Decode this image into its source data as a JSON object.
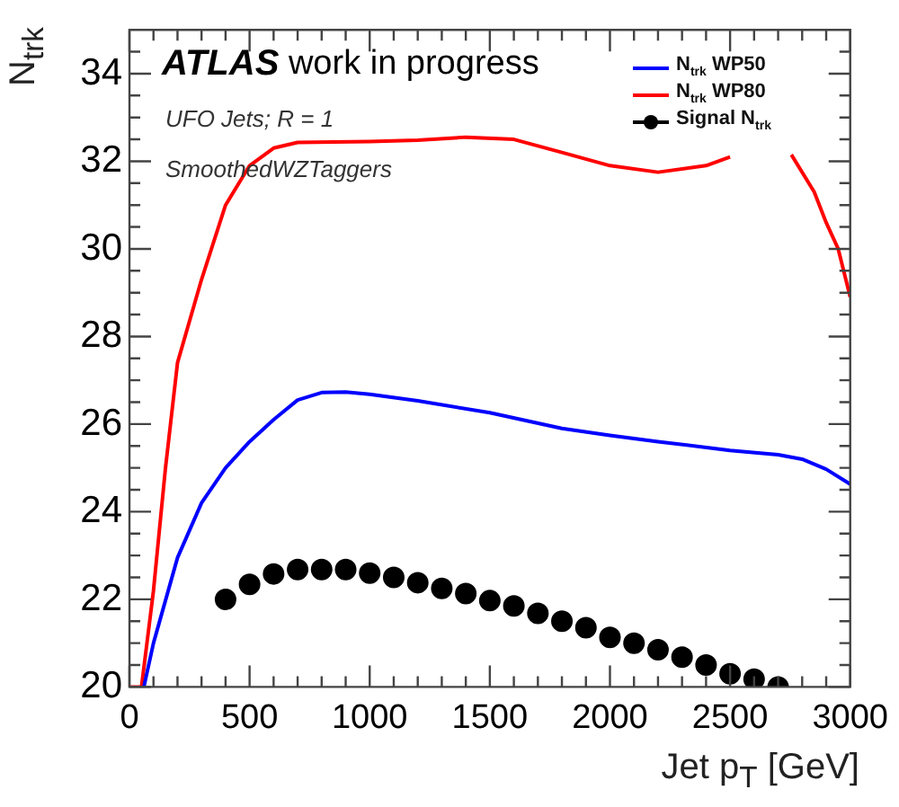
{
  "chart_data": {
    "type": "line",
    "title": "ATLAS work in progress",
    "annotations": [
      "UFO Jets; R = 1",
      "SmoothedWZTaggers"
    ],
    "xlabel": "Jet p$_{T}$ [GeV]",
    "ylabel": "N$_{trk}$",
    "xlim": [
      0,
      3000
    ],
    "ylim": [
      20,
      35
    ],
    "xticks": [
      0,
      {
        "value": 100,
        "label": null
      },
      {
        "value": 200,
        "label": null
      },
      {
        "value": 300,
        "label": null
      },
      {
        "value": 400,
        "label": null
      },
      500,
      {
        "value": 600,
        "label": null
      },
      {
        "value": 700,
        "label": null
      },
      {
        "value": 800,
        "label": null
      },
      {
        "value": 900,
        "label": null
      },
      1000,
      {
        "value": 1100,
        "label": null
      },
      {
        "value": 1200,
        "label": null
      },
      {
        "value": 1300,
        "label": null
      },
      {
        "value": 1400,
        "label": null
      },
      1500,
      {
        "value": 1600,
        "label": null
      },
      {
        "value": 1700,
        "label": null
      },
      {
        "value": 1800,
        "label": null
      },
      {
        "value": 1900,
        "label": null
      },
      2000,
      {
        "value": 2100,
        "label": null
      },
      {
        "value": 2200,
        "label": null
      },
      {
        "value": 2300,
        "label": null
      },
      {
        "value": 2400,
        "label": null
      },
      2500,
      {
        "value": 2600,
        "label": null
      },
      {
        "value": 2700,
        "label": null
      },
      {
        "value": 2800,
        "label": null
      },
      {
        "value": 2900,
        "label": null
      },
      3000
    ],
    "yticks": [
      20,
      {
        "value": 20.5,
        "label": null
      },
      {
        "value": 21,
        "label": null
      },
      {
        "value": 21.5,
        "label": null
      },
      22,
      {
        "value": 22.5,
        "label": null
      },
      {
        "value": 23,
        "label": null
      },
      {
        "value": 23.5,
        "label": null
      },
      24,
      {
        "value": 24.5,
        "label": null
      },
      {
        "value": 25,
        "label": null
      },
      {
        "value": 25.5,
        "label": null
      },
      26,
      {
        "value": 26.5,
        "label": null
      },
      {
        "value": 27,
        "label": null
      },
      {
        "value": 27.5,
        "label": null
      },
      28,
      {
        "value": 28.5,
        "label": null
      },
      {
        "value": 29,
        "label": null
      },
      {
        "value": 29.5,
        "label": null
      },
      30,
      {
        "value": 30.5,
        "label": null
      },
      {
        "value": 31,
        "label": null
      },
      {
        "value": 31.5,
        "label": null
      },
      32,
      {
        "value": 32.5,
        "label": null
      },
      {
        "value": 33,
        "label": null
      },
      {
        "value": 33.5,
        "label": null
      },
      34,
      {
        "value": 34.5,
        "label": null
      }
    ],
    "grid": false,
    "legend": "top right",
    "line_style": "solid",
    "series": [
      {
        "name": "N$_{trk}$ WP50",
        "color": "#0000ff",
        "x": [
          60,
          100,
          200,
          300,
          400,
          500,
          600,
          700,
          800,
          900,
          1000,
          1200,
          1500,
          1800,
          2000,
          2200,
          2500,
          2700,
          2800,
          2900,
          3000
        ],
        "values": [
          20,
          21,
          22.95,
          24.2,
          25,
          25.6,
          26.1,
          26.55,
          26.72,
          26.73,
          26.68,
          26.53,
          26.26,
          25.9,
          25.74,
          25.6,
          25.4,
          25.3,
          25.2,
          24.97,
          24.63
        ]
      },
      {
        "name": "N$_{trk}$ WP80",
        "color": "#ff0000",
        "x": [
          0,
          50,
          100,
          150,
          200,
          300,
          400,
          500,
          600,
          700,
          1000,
          1200,
          1400,
          1600,
          1800,
          2000,
          2200,
          2400,
          2500,
          2600,
          2700,
          2755,
          2850,
          2900,
          2950,
          3000
        ],
        "values": [
          20,
          20,
          22.2,
          25,
          27.4,
          29.3,
          31,
          31.9,
          32.3,
          32.43,
          32.45,
          32.48,
          32.55,
          32.5,
          32.2,
          31.9,
          31.75,
          31.9,
          32.1,
          null,
          null,
          32.15,
          31.3,
          30.6,
          30,
          28.9
        ]
      },
      {
        "name": "Signal N$_{trk}$",
        "type": "scatter",
        "marker": "circle",
        "color": "#000000",
        "x": [
          400,
          500,
          600,
          700,
          800,
          900,
          1000,
          1100,
          1200,
          1300,
          1400,
          1500,
          1600,
          1700,
          1800,
          1900,
          2000,
          2100,
          2200,
          2300,
          2400,
          2500,
          2600,
          2700
        ],
        "values": [
          22,
          22.34,
          22.58,
          22.68,
          22.68,
          22.68,
          22.6,
          22.5,
          22.38,
          22.25,
          22.13,
          21.97,
          21.85,
          21.68,
          21.5,
          21.35,
          21.13,
          21,
          20.85,
          20.68,
          20.5,
          20.3,
          20.18,
          20
        ]
      }
    ]
  }
}
